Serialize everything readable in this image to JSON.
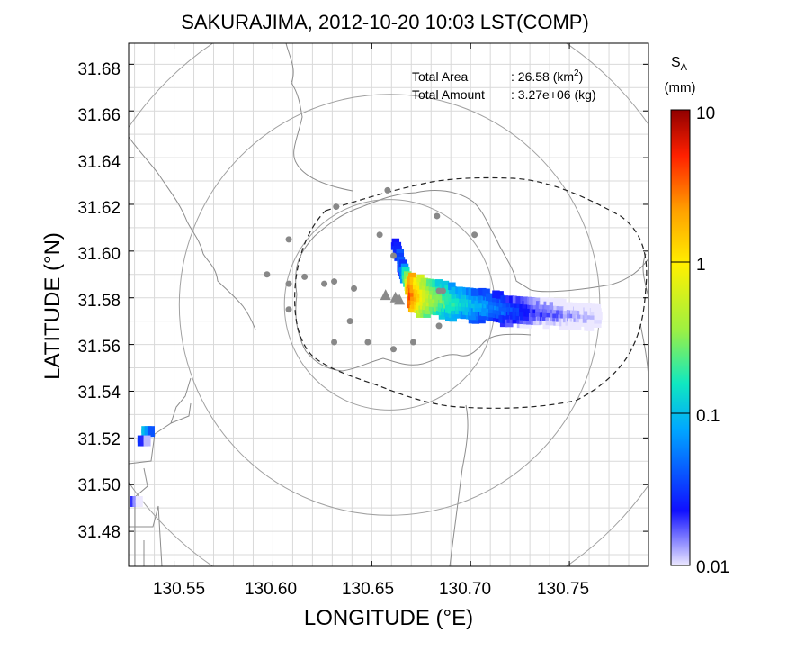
{
  "title": "SAKURAJIMA, 2012-10-20 10:03 LST(COMP)",
  "xlabel": "LONGITUDE (°E)",
  "ylabel": "LATITUDE (°N)",
  "xticks": [
    "130.55",
    "130.60",
    "130.65",
    "130.70",
    "130.75"
  ],
  "yticks": [
    "31.68",
    "31.66",
    "31.64",
    "31.62",
    "31.60",
    "31.58",
    "31.56",
    "31.54",
    "31.52",
    "31.50",
    "31.48"
  ],
  "annotation": {
    "area_label": "Total Area",
    "area_value": ": 26.58 (km",
    "area_sup": "2",
    "area_close": ")",
    "amount_label": "Total Amount",
    "amount_value": ": 3.27e+06 (kg)"
  },
  "colorbar": {
    "symbol": "S",
    "subscript": "A",
    "unit": "(mm)",
    "ticks": [
      "10",
      "1",
      "0.1",
      "0.01"
    ],
    "scale": "log",
    "range": [
      0.01,
      10
    ],
    "colors": [
      "#ece8ff",
      "#1010ff",
      "#00a8ff",
      "#10e8c0",
      "#a0f040",
      "#fff000",
      "#ffa000",
      "#ff2000",
      "#900000"
    ]
  },
  "chart_data": {
    "type": "heatmap",
    "x_range": [
      130.527,
      130.79
    ],
    "y_range": [
      31.465,
      31.689
    ],
    "grid": true,
    "circles": [
      {
        "center": [
          130.659,
          31.577
        ],
        "radius_km": 5
      },
      {
        "center": [
          130.659,
          31.577
        ],
        "radius_km": 10
      },
      {
        "center": [
          130.659,
          31.577
        ],
        "radius_km": 15
      }
    ],
    "vents": [
      [
        130.657,
        31.581
      ],
      [
        130.662,
        31.58
      ],
      [
        130.664,
        31.579
      ]
    ],
    "stations": [
      [
        130.658,
        31.626
      ],
      [
        130.632,
        31.619
      ],
      [
        130.683,
        31.615
      ],
      [
        130.608,
        31.605
      ],
      [
        130.654,
        31.607
      ],
      [
        130.702,
        31.607
      ],
      [
        130.661,
        31.598
      ],
      [
        130.597,
        31.59
      ],
      [
        130.616,
        31.589
      ],
      [
        130.631,
        31.587
      ],
      [
        130.608,
        31.586
      ],
      [
        130.626,
        31.586
      ],
      [
        130.641,
        31.584
      ],
      [
        130.684,
        31.583
      ],
      [
        130.686,
        31.583
      ],
      [
        130.608,
        31.575
      ],
      [
        130.639,
        31.57
      ],
      [
        130.684,
        31.568
      ],
      [
        130.631,
        31.561
      ],
      [
        130.648,
        31.561
      ],
      [
        130.661,
        31.558
      ],
      [
        130.671,
        31.561
      ]
    ],
    "plume_axis": [
      [
        130.662,
        31.603,
        0.03
      ],
      [
        130.666,
        31.592,
        0.06
      ],
      [
        130.67,
        31.582,
        4.0
      ],
      [
        130.676,
        31.581,
        0.8
      ],
      [
        130.684,
        31.58,
        0.3
      ],
      [
        130.694,
        31.578,
        0.15
      ],
      [
        130.706,
        31.577,
        0.08
      ],
      [
        130.72,
        31.575,
        0.04
      ],
      [
        130.735,
        31.574,
        0.02
      ],
      [
        130.75,
        31.573,
        0.015
      ],
      [
        130.766,
        31.572,
        0.01
      ]
    ],
    "detached_patches": [
      [
        130.537,
        31.522,
        0.1
      ],
      [
        130.535,
        31.518,
        0.03
      ],
      [
        130.531,
        31.492,
        0.02
      ]
    ]
  }
}
